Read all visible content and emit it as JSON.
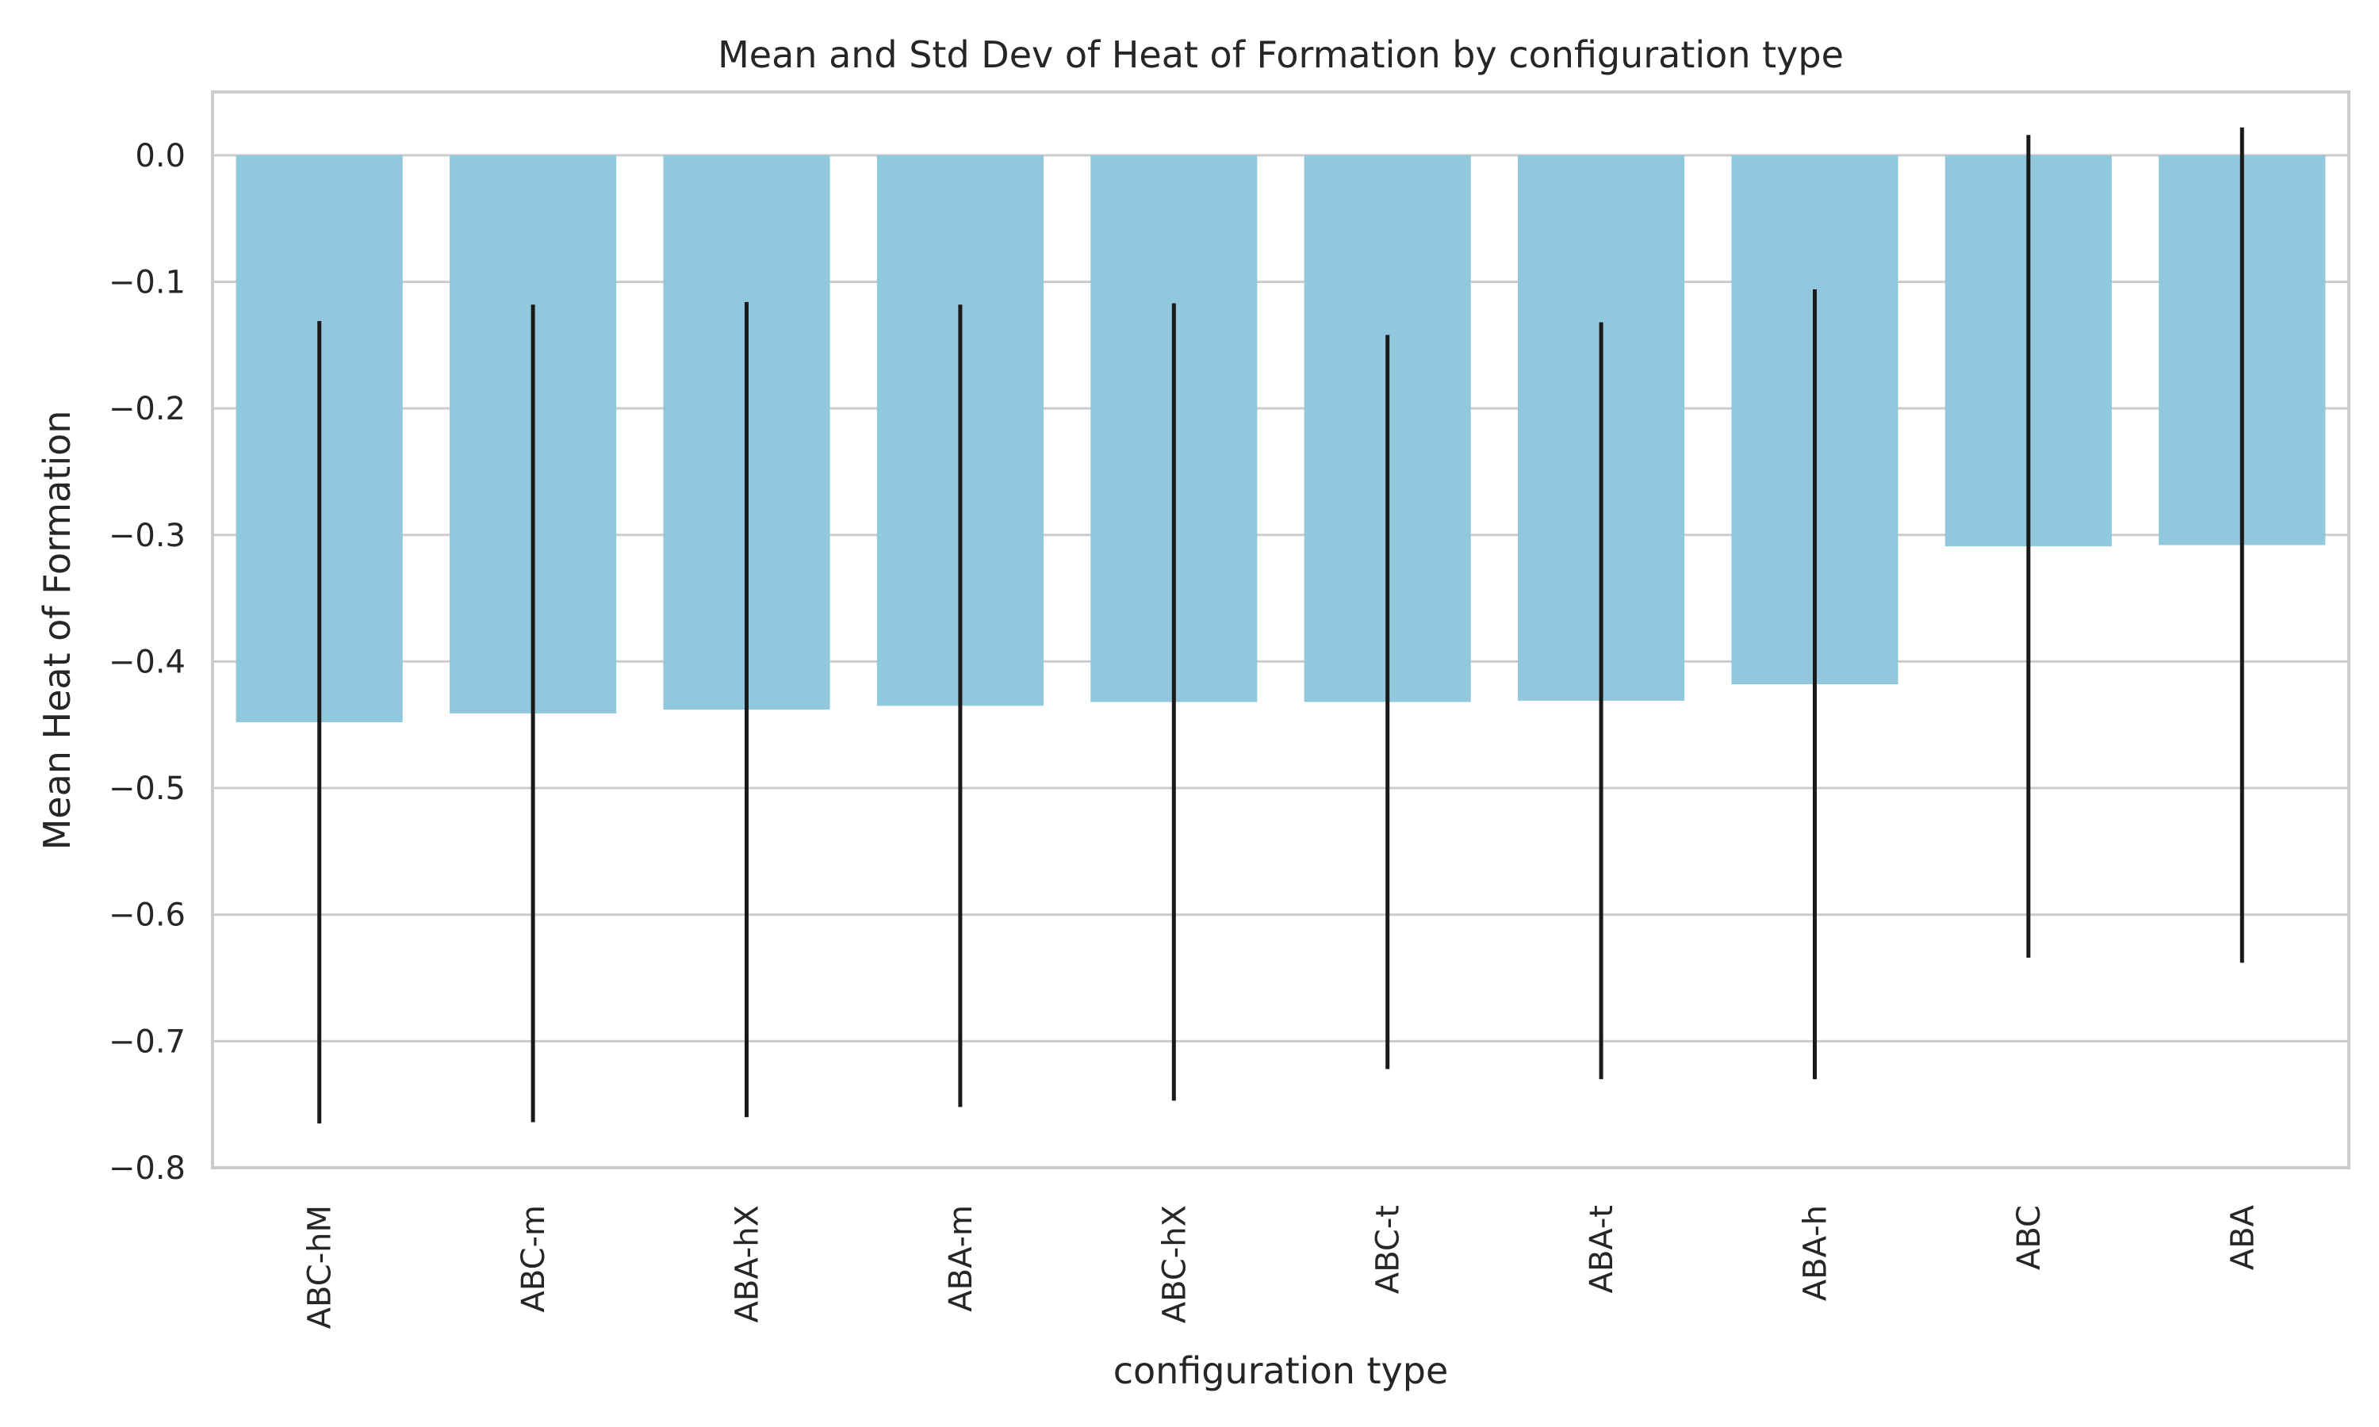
{
  "chart_data": {
    "type": "bar",
    "title": "Mean and Std Dev of Heat of Formation by configuration type",
    "xlabel": "configuration type",
    "ylabel": "Mean Heat of Formation",
    "categories": [
      "ABC-hM",
      "ABC-m",
      "ABA-hX",
      "ABA-m",
      "ABC-hX",
      "ABC-t",
      "ABA-t",
      "ABA-h",
      "ABC",
      "ABA"
    ],
    "values": [
      -0.448,
      -0.441,
      -0.438,
      -0.435,
      -0.432,
      -0.432,
      -0.431,
      -0.418,
      -0.309,
      -0.308
    ],
    "error": [
      0.317,
      0.323,
      0.322,
      0.317,
      0.315,
      0.29,
      0.299,
      0.312,
      0.325,
      0.33
    ],
    "ylim": [
      -0.8,
      0.05
    ],
    "yticks": [
      0.0,
      -0.1,
      -0.2,
      -0.3,
      -0.4,
      -0.5,
      -0.6,
      -0.7,
      -0.8
    ],
    "ytick_labels": [
      "0.0",
      "−0.1",
      "−0.2",
      "−0.3",
      "−0.4",
      "−0.5",
      "−0.6",
      "−0.7",
      "−0.8"
    ],
    "grid": true,
    "bar_color": "#92c8de",
    "error_color": "#1a1a1a",
    "grid_color": "#cccccc",
    "text_color": "#262626"
  }
}
